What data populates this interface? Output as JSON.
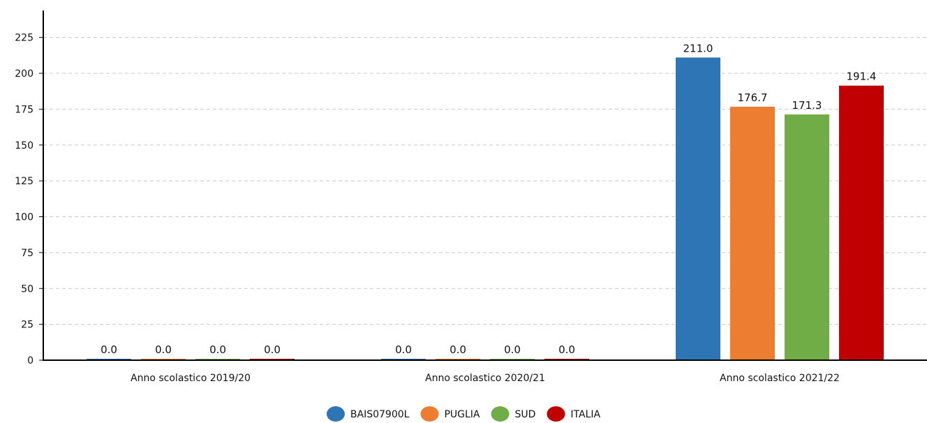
{
  "chart_data": {
    "type": "bar",
    "title": "",
    "xlabel": "",
    "ylabel": "",
    "categories": [
      "Anno scolastico 2019/20",
      "Anno scolastico 2020/21",
      "Anno scolastico 2021/22"
    ],
    "series": [
      {
        "name": "BAIS07900L",
        "color": "#2e75b6",
        "values": [
          0.0,
          0.0,
          211.0
        ],
        "labels": [
          "0.0",
          "0.0",
          "211.0"
        ]
      },
      {
        "name": "PUGLIA",
        "color": "#ed7d31",
        "values": [
          0.0,
          0.0,
          176.7
        ],
        "labels": [
          "0.0",
          "0.0",
          "176.7"
        ]
      },
      {
        "name": "SUD",
        "color": "#70ad47",
        "values": [
          0.0,
          0.0,
          171.3
        ],
        "labels": [
          "0.0",
          "0.0",
          "171.3"
        ]
      },
      {
        "name": "ITALIA",
        "color": "#c00000",
        "values": [
          0.0,
          0.0,
          191.4
        ],
        "labels": [
          "0.0",
          "0.0",
          "191.4"
        ]
      }
    ],
    "yticks": [
      "0",
      "25",
      "50",
      "75",
      "100",
      "125",
      "150",
      "175",
      "200",
      "225"
    ],
    "ylim": [
      0,
      250
    ],
    "grid": true,
    "legend_position": "bottom-center"
  }
}
